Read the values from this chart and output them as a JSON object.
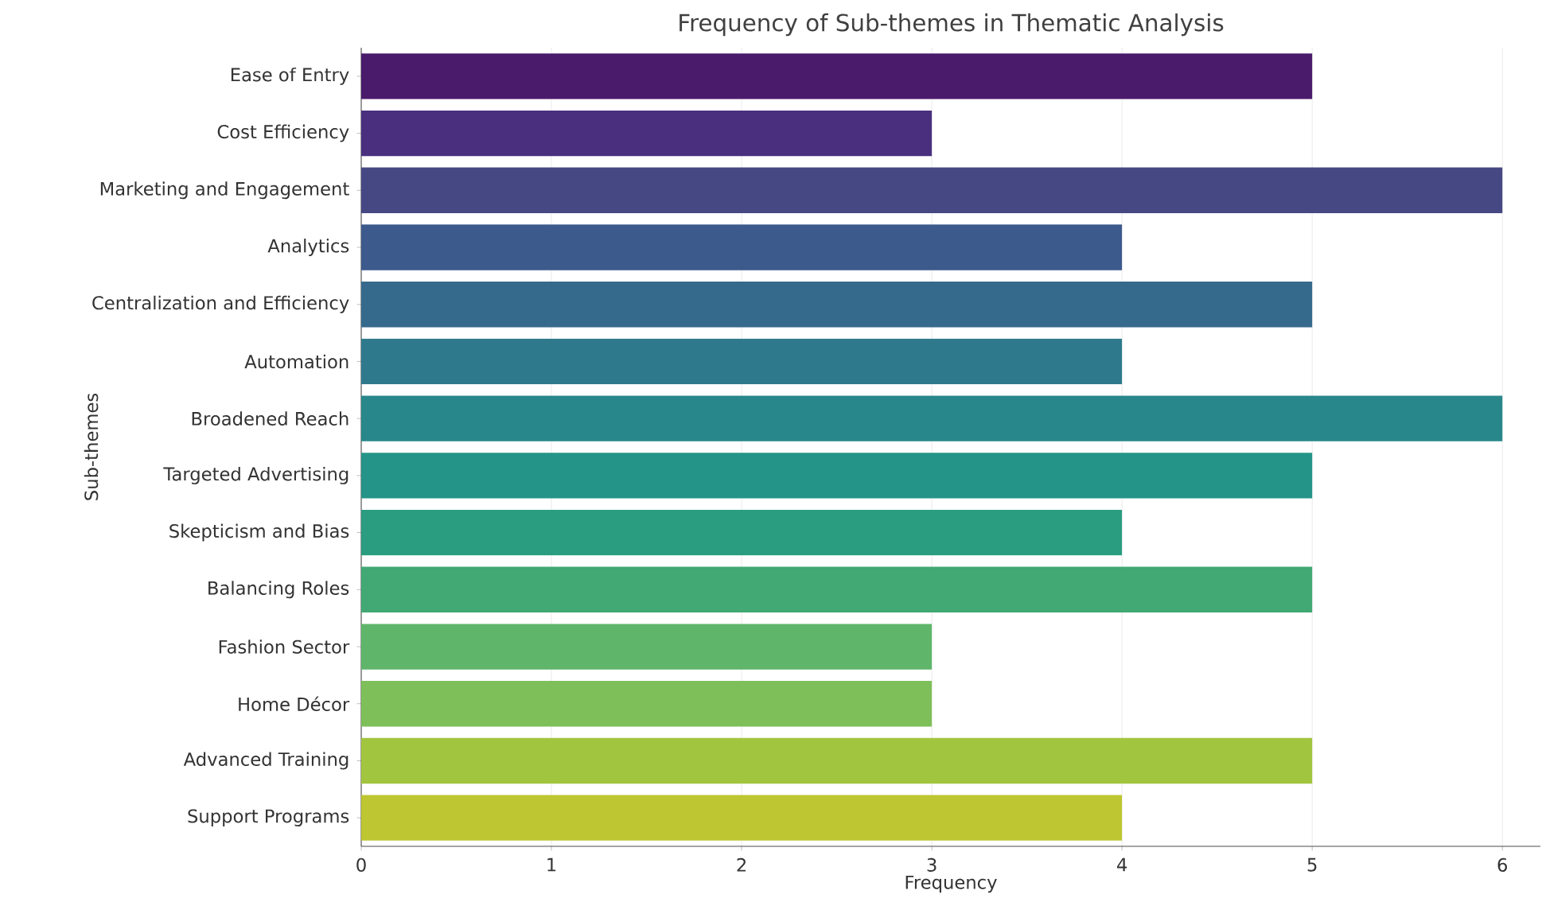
{
  "chart_data": {
    "type": "bar",
    "orientation": "horizontal",
    "title": "Frequency of Sub-themes in Thematic Analysis",
    "xlabel": "Frequency",
    "ylabel": "Sub-themes",
    "categories": [
      "Ease of Entry",
      "Cost Efficiency",
      "Marketing and Engagement",
      "Analytics",
      "Centralization and Efficiency",
      "Automation",
      "Broadened Reach",
      "Targeted Advertising",
      "Skepticism and Bias",
      "Balancing Roles",
      "Fashion Sector",
      "Home Décor",
      "Advanced Training",
      "Support Programs"
    ],
    "values": [
      5,
      3,
      6,
      4,
      5,
      4,
      6,
      5,
      4,
      5,
      3,
      3,
      5,
      4
    ],
    "colors": [
      "#4a1a6b",
      "#4a2f7f",
      "#464884",
      "#3d5a8c",
      "#366a8c",
      "#2e7a8c",
      "#28878a",
      "#249488",
      "#2a9d80",
      "#42a874",
      "#5fb66a",
      "#7ebf5a",
      "#a2c53f",
      "#bec631"
    ],
    "xlim": [
      0,
      6.2
    ],
    "xticks": [
      0,
      1,
      2,
      3,
      4,
      5,
      6
    ],
    "grid": "x"
  }
}
